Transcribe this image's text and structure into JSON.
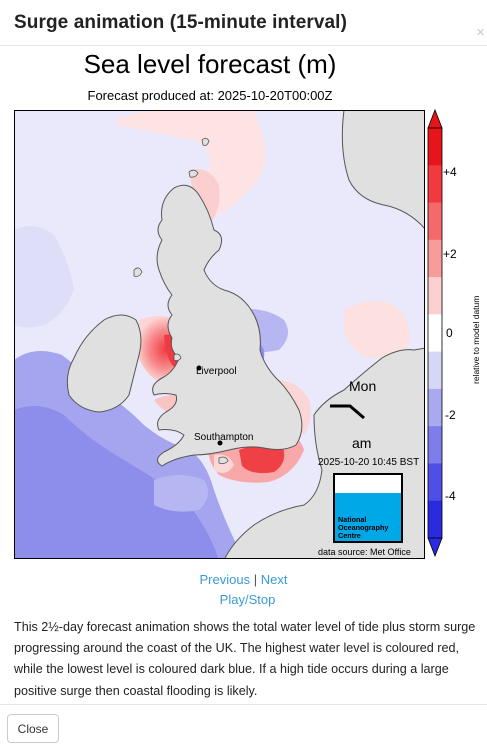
{
  "modal": {
    "title": "Surge animation (15-minute interval)",
    "close_symbol": "×",
    "footer_close_label": "Close"
  },
  "figure": {
    "title": "Sea level forecast (m)",
    "subtitle": "Forecast produced at: 2025-10-20T00:00Z",
    "labels": {
      "liverpool": "Liverpool",
      "southampton": "Southampton",
      "day": "Mon",
      "period": "am",
      "timestamp": "2025-10-20 10:45 BST",
      "data_source": "data source: Met Office"
    },
    "logo": {
      "line1": "National",
      "line2": "Oceanography",
      "line3": "Centre"
    },
    "colorbar": {
      "ticks": [
        "+4",
        "+2",
        "0",
        "-2",
        "-4"
      ],
      "axis_label": "relative to model datum",
      "colors": [
        "#e8141b",
        "#f03a3f",
        "#f5696b",
        "#f89b9b",
        "#fcd0d0",
        "#ffffff",
        "#d6d6f7",
        "#a9a9f0",
        "#7d7deb",
        "#4f4fe8",
        "#2a2ae0"
      ]
    },
    "colors": {
      "land": "#e0e0e0",
      "coast": "#555555",
      "sea_neutral": "#e9e9fb"
    }
  },
  "nav": {
    "previous": "Previous",
    "separator": "|",
    "next": "Next",
    "play_stop": "Play/Stop"
  },
  "description": "This 2½-day forecast animation shows the total water level of tide plus storm surge progressing around the coast of the UK. The highest water level is coloured red, while the lowest level is coloured dark blue. If a high tide occurs during a large positive surge then coastal flooding is likely."
}
